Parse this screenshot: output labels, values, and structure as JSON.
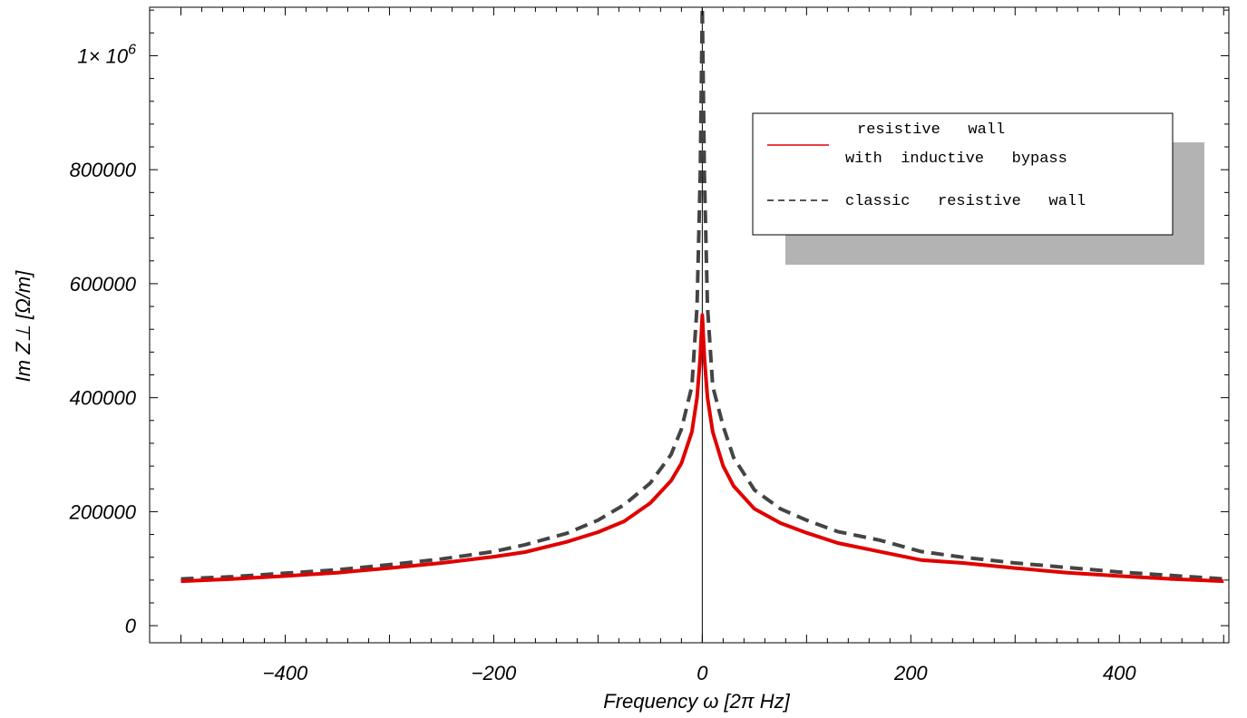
{
  "chart_data": {
    "type": "line",
    "title": "",
    "xlabel": "Frequency ω [2π Hz]",
    "ylabel": "Im Z⊥ [Ω/m]",
    "xlim": [
      -530,
      505
    ],
    "ylim": [
      -30000,
      1085000
    ],
    "x_ticks": [
      {
        "value": -400,
        "label": "−400"
      },
      {
        "value": -200,
        "label": "−200"
      },
      {
        "value": 0,
        "label": "0"
      },
      {
        "value": 200,
        "label": "200"
      },
      {
        "value": 400,
        "label": "400"
      }
    ],
    "y_ticks": [
      {
        "value": 0,
        "label": "0"
      },
      {
        "value": 200000,
        "label": "200000"
      },
      {
        "value": 400000,
        "label": "400000"
      },
      {
        "value": 600000,
        "label": "600000"
      },
      {
        "value": 800000,
        "label": "800000"
      },
      {
        "value": 1000000,
        "label": "1× 10",
        "sup": "6"
      }
    ],
    "grid": false,
    "legend_position": "top-right",
    "legend": [
      {
        "lines": [
          "resistive   wall",
          "with  inductive   bypass"
        ],
        "color": "#e00000",
        "style": "solid"
      },
      {
        "lines": [
          "classic   resistive   wall"
        ],
        "color": "#444444",
        "style": "dashed"
      }
    ],
    "series": [
      {
        "name": "resistive wall with inductive bypass",
        "color": "#e00000",
        "style": "solid",
        "x": [
          -500,
          -450,
          -400,
          -350,
          -300,
          -250,
          -200,
          -170,
          -130,
          -100,
          -75,
          -50,
          -30,
          -20,
          -10,
          -5,
          -2,
          0,
          2,
          5,
          10,
          20,
          30,
          50,
          75,
          100,
          130,
          170,
          210,
          250,
          300,
          350,
          400,
          450,
          500
        ],
        "y": [
          78000,
          82000,
          87000,
          93000,
          101000,
          110000,
          121000,
          129000,
          147000,
          164000,
          183000,
          215000,
          254000,
          285000,
          340000,
          400000,
          470000,
          545000,
          470000,
          400000,
          340000,
          280000,
          245000,
          205000,
          180000,
          163000,
          145000,
          130000,
          115000,
          110000,
          101000,
          93000,
          87000,
          82000,
          78000
        ]
      },
      {
        "name": "classic resistive wall",
        "color": "#444444",
        "style": "dashed",
        "x": [
          -500,
          -450,
          -400,
          -350,
          -300,
          -250,
          -200,
          -170,
          -130,
          -100,
          -75,
          -50,
          -30,
          -20,
          -10,
          -5,
          -2,
          0,
          2,
          5,
          10,
          20,
          30,
          50,
          75,
          100,
          130,
          170,
          210,
          250,
          300,
          350,
          400,
          450,
          500
        ],
        "y": [
          82000,
          86000,
          92000,
          98000,
          107000,
          117000,
          130000,
          142000,
          162000,
          185000,
          212000,
          250000,
          300000,
          345000,
          420000,
          560000,
          790000,
          1085000,
          790000,
          560000,
          420000,
          350000,
          295000,
          238000,
          205000,
          185000,
          165000,
          150000,
          130000,
          120000,
          110000,
          102000,
          94000,
          88000,
          82000
        ]
      }
    ]
  }
}
